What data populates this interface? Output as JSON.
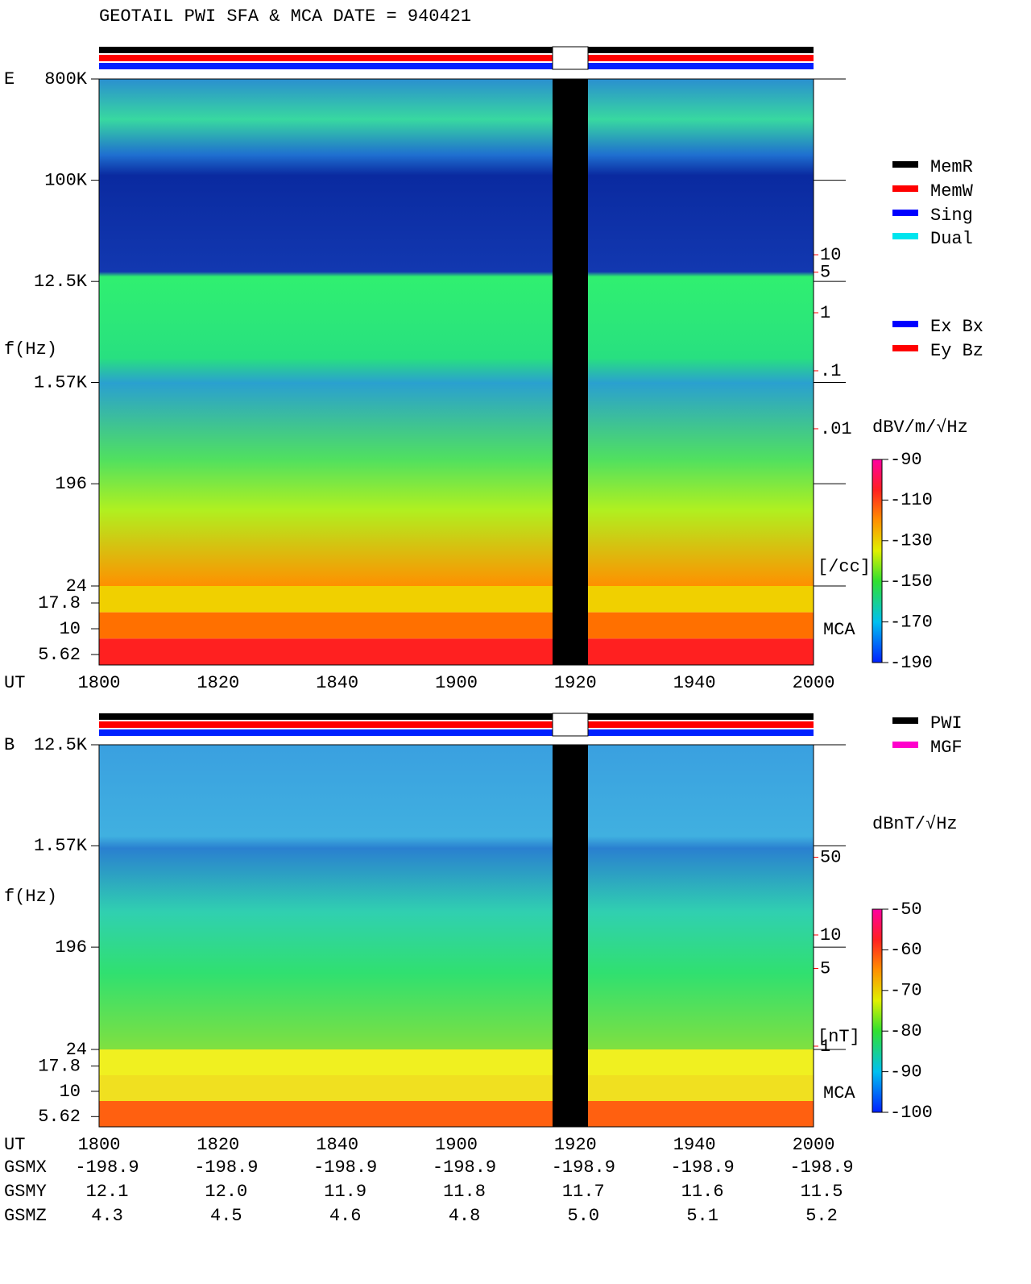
{
  "title": "GEOTAIL  PWI SFA & MCA   DATE = 940421",
  "chart_data": [
    {
      "type": "spectrogram",
      "panel_label": "E",
      "ylabel": "f(Hz)",
      "xlabel": "UT",
      "yscale": "log",
      "xticks": [
        "1800",
        "1820",
        "1840",
        "1900",
        "1920",
        "1940",
        "2000"
      ],
      "ylim": [
        24,
        800000
      ],
      "yticks": [
        {
          "value": 800000,
          "label": "800K"
        },
        {
          "value": 100000,
          "label": "100K"
        },
        {
          "value": 12500,
          "label": "12.5K"
        },
        {
          "value": 1570,
          "label": "1.57K"
        },
        196,
        24
      ],
      "mca_label": "MCA",
      "mca_ylim": [
        4.45,
        26
      ],
      "mca_yticks": [
        17.8,
        10,
        5.62
      ],
      "y2lim": [
        1.95e-05,
        10700
      ],
      "y2ticks": [
        10,
        5,
        1,
        {
          "value": 0.1,
          "label": ".1"
        },
        {
          "value": 0.01,
          "label": ".01"
        }
      ],
      "y2label": "[/cc]",
      "y2color": "#ff0000",
      "colorbar_label": "dBV/m/√Hz",
      "colorlim": [
        -190,
        -90
      ],
      "colorticks": [
        -90,
        -110,
        -130,
        -150,
        -170,
        -190
      ],
      "legend": [
        {
          "name": "MemR",
          "color": "#000000"
        },
        {
          "name": "MemW",
          "color": "#ff0000"
        },
        {
          "name": "Sing",
          "color": "#0000ff"
        },
        {
          "name": "Dual",
          "color": "#00e5ee"
        }
      ],
      "legend2": [
        {
          "name": "Ex Bx",
          "color": "#0000ff"
        },
        {
          "name": "Ey Bz",
          "color": "#ff0000"
        }
      ]
    },
    {
      "type": "spectrogram",
      "panel_label": "B",
      "ylabel": "f(Hz)",
      "xlabel": "UT",
      "yscale": "log",
      "xticks": [
        "1800",
        "1820",
        "1840",
        "1900",
        "1920",
        "1940",
        "2000"
      ],
      "ylim": [
        24,
        12500
      ],
      "yticks": [
        {
          "value": 12500,
          "label": "12.5K"
        },
        {
          "value": 1570,
          "label": "1.57K"
        },
        196,
        24
      ],
      "mca_label": "MCA",
      "mca_ylim": [
        4.45,
        26
      ],
      "mca_yticks": [
        17.8,
        10,
        5.62
      ],
      "y2lim": [
        0.935,
        513
      ],
      "y2ticks": [
        50,
        10,
        5,
        1
      ],
      "y2label": "[nT]",
      "y2color": "#ff0000",
      "colorbar_label": "dBnT/√Hz",
      "colorlim": [
        -100,
        -50
      ],
      "colorticks": [
        -50,
        -60,
        -70,
        -80,
        -90,
        -100
      ],
      "legend": [
        {
          "name": "PWI",
          "color": "#000000"
        },
        {
          "name": "MGF",
          "color": "#ff00cc"
        }
      ]
    }
  ],
  "orbit": {
    "rows": [
      {
        "name": "GSMX",
        "values": [
          "-198.9",
          "-198.9",
          "-198.9",
          "-198.9",
          "-198.9",
          "-198.9",
          "-198.9"
        ]
      },
      {
        "name": "GSMY",
        "values": [
          "12.1",
          "12.0",
          "11.9",
          "11.8",
          "11.7",
          "11.6",
          "11.5"
        ]
      },
      {
        "name": "GSMZ",
        "values": [
          "4.3",
          "4.5",
          "4.6",
          "4.8",
          "5.0",
          "5.1",
          "5.2"
        ]
      }
    ]
  }
}
